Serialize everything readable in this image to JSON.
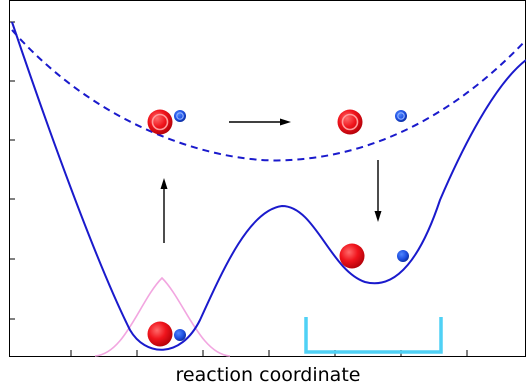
{
  "figure": {
    "xlabel": "reaction coordinate",
    "description_colors": {
      "potential": "#1a1acc",
      "wavepacket": "#f2a6e0",
      "well": "#4fd1f5",
      "heavy_atom": "#e8141c",
      "light_atom": "#1f55d6",
      "arrow": "#000000"
    }
  },
  "chart_data": {
    "type": "diagram",
    "xlabel": "reaction coordinate",
    "series": [],
    "ticks": {
      "x_count": 8,
      "y_count": 6,
      "labels": false
    }
  }
}
